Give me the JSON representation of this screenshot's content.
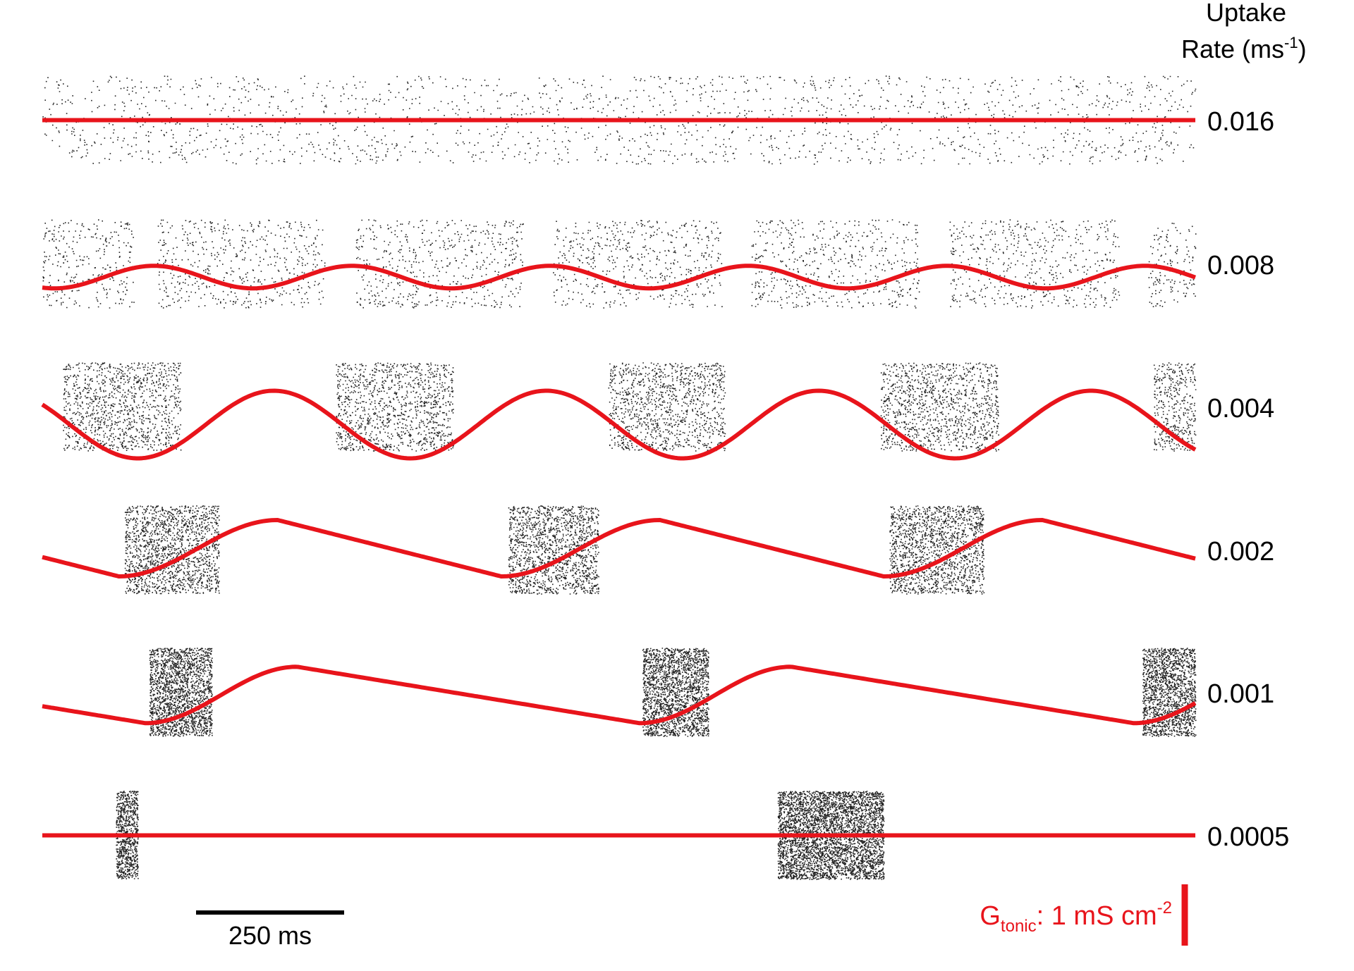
{
  "chart_data": {
    "type": "raster",
    "header": {
      "line1": "Uptake",
      "line2_base": "Rate (ms",
      "line2_sup": "-1",
      "line2_end": ")"
    },
    "colors": {
      "spikes": "#222222",
      "gtonic": "#e8141b"
    },
    "x_range_ms": [
      0,
      1960
    ],
    "rows": [
      {
        "uptake_label": "0.016",
        "burst_windows_ms": [
          [
            0,
            1960
          ]
        ],
        "density": 0.09,
        "gtonic_baseline": 0.5,
        "gtonic_wave": {
          "type": "flat"
        }
      },
      {
        "uptake_label": "0.008",
        "burst_windows_ms": [
          [
            0,
            155
          ],
          [
            195,
            480
          ],
          [
            532,
            818
          ],
          [
            868,
            1155
          ],
          [
            1205,
            1490
          ],
          [
            1542,
            1830
          ],
          [
            1880,
            1960
          ]
        ],
        "density": 0.18,
        "gtonic_baseline": 0.35,
        "gtonic_wave": {
          "type": "sine",
          "period_ms": 337,
          "phase_ms": 105,
          "amp": 0.1
        }
      },
      {
        "uptake_label": "0.004",
        "burst_windows_ms": [
          [
            35,
            235
          ],
          [
            499,
            698
          ],
          [
            962,
            1160
          ],
          [
            1425,
            1625
          ],
          [
            1889,
            1960
          ]
        ],
        "density": 0.55,
        "gtonic_baseline": 0.3,
        "gtonic_wave": {
          "type": "sine",
          "period_ms": 463,
          "phase_ms": 278,
          "amp": 0.3
        }
      },
      {
        "uptake_label": "0.002",
        "burst_windows_ms": [
          [
            140,
            300
          ],
          [
            792,
            945
          ],
          [
            1440,
            1600
          ]
        ],
        "density": 0.95,
        "gtonic_baseline": 0.2,
        "gtonic_wave": {
          "type": "relax",
          "period_ms": 650,
          "start_ms": 130,
          "rise_ms": 270,
          "amp": 0.5
        }
      },
      {
        "uptake_label": "0.001",
        "burst_windows_ms": [
          [
            182,
            288
          ],
          [
            1020,
            1132
          ],
          [
            1870,
            1960
          ]
        ],
        "density": 1.8,
        "gtonic_baseline": 0.15,
        "gtonic_wave": {
          "type": "relax",
          "period_ms": 840,
          "start_ms": 175,
          "rise_ms": 258,
          "amp": 0.5
        }
      },
      {
        "uptake_label": "0.0005",
        "burst_windows_ms": [
          [
            125,
            162
          ],
          [
            1250,
            1430
          ]
        ],
        "density": 2.2,
        "gtonic_baseline": 0.5,
        "gtonic_wave": {
          "type": "flat"
        }
      }
    ],
    "scale_bar": {
      "value_ms": 250,
      "label": "250 ms"
    },
    "gtonic_scale": {
      "base": "G",
      "sub": "tonic",
      "rest": ": 1 mS cm",
      "sup": "-2"
    }
  }
}
